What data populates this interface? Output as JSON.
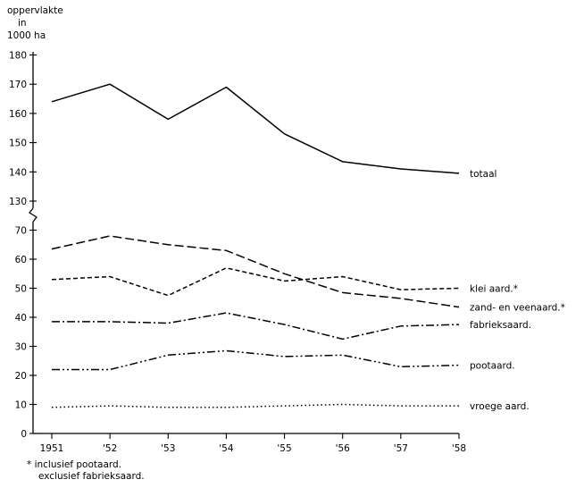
{
  "chart_data": {
    "type": "line",
    "ylabel_lines": [
      "oppervlakte",
      "in",
      "1000 ha"
    ],
    "x": [
      "1951",
      "'52",
      "'53",
      "'54",
      "'55",
      "'56",
      "'57",
      "'58"
    ],
    "y_ticks_upper": [
      130,
      140,
      150,
      160,
      170,
      180
    ],
    "y_ticks_lower": [
      0,
      10,
      20,
      30,
      40,
      50,
      60,
      70
    ],
    "axis_break": "between 70 and 130",
    "grid": false,
    "series": [
      {
        "name": "totaal",
        "style": "solid",
        "values": [
          164,
          170,
          158,
          169,
          153,
          143.5,
          141,
          139.5
        ]
      },
      {
        "name": "klei aard.*",
        "style": "dashed",
        "values": [
          53,
          54,
          47.5,
          57,
          52.5,
          54,
          49.5,
          50
        ]
      },
      {
        "name": "zand- en veenaard.*",
        "style": "long-dashed",
        "values": [
          63.5,
          68,
          65,
          63,
          55,
          48.5,
          46.5,
          43.5
        ]
      },
      {
        "name": "fabrieksaard.",
        "style": "dash-dot",
        "values": [
          38.5,
          38.5,
          38,
          41.5,
          37.5,
          32.5,
          37,
          37.5
        ]
      },
      {
        "name": "pootaard.",
        "style": "dash-dot-dot",
        "values": [
          22,
          22,
          27,
          28.5,
          26.5,
          27,
          23,
          23.5
        ]
      },
      {
        "name": "vroege aard.",
        "style": "dotted",
        "values": [
          9,
          9.5,
          9,
          9,
          9.5,
          10,
          9.5,
          9.5
        ]
      }
    ]
  },
  "footnote": {
    "line1": "* inclusief pootaard.",
    "line2": "exclusief fabrieksaard."
  }
}
